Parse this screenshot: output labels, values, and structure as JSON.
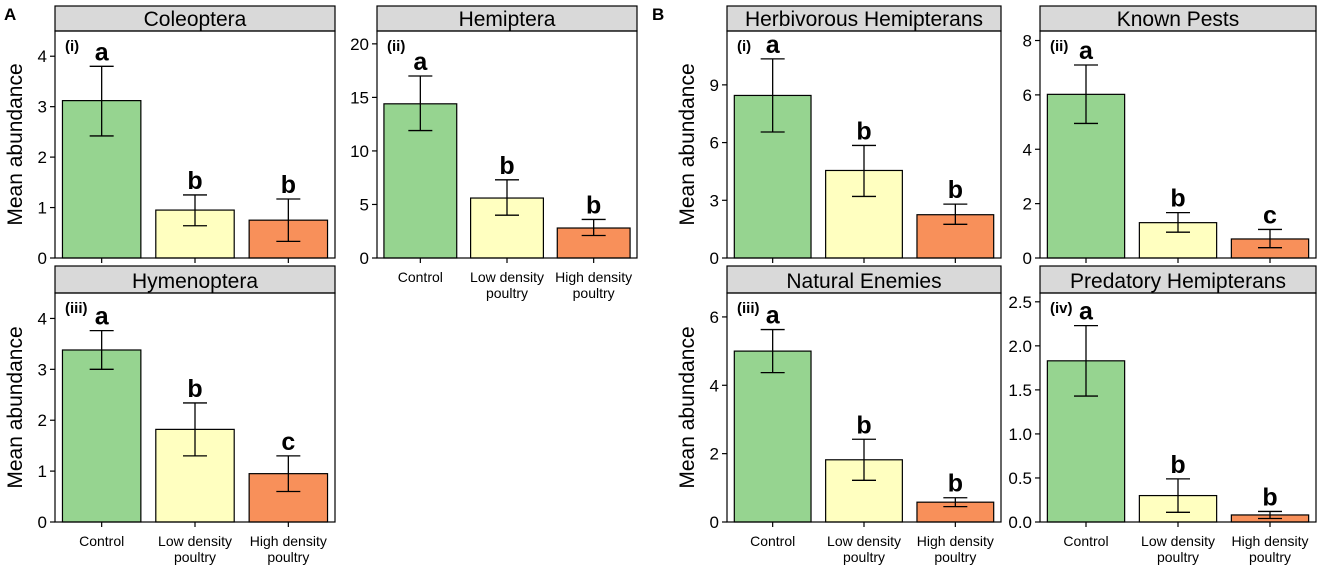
{
  "figure": {
    "panel_labels": [
      "A",
      "B"
    ]
  },
  "colors": {
    "categories": [
      "#96d490",
      "#ffffc0",
      "#f8905a"
    ],
    "strip_fill": "#d9d9d9",
    "border": "#000000"
  },
  "chart_data": [
    {
      "type": "bar",
      "group": "A",
      "tag": "(i)",
      "title": "Coleoptera",
      "categories": [
        "Control",
        "Low density poultry",
        "High density poultry"
      ],
      "values": [
        3.12,
        0.95,
        0.75
      ],
      "error_low": [
        2.42,
        0.64,
        0.33
      ],
      "error_high": [
        3.8,
        1.25,
        1.17
      ],
      "letters": [
        "a",
        "b",
        "b"
      ],
      "ylim": [
        0,
        4.5
      ],
      "yticks": [
        "0",
        "1",
        "2",
        "3",
        "4"
      ],
      "ylabel": "Mean abundance",
      "show_xticks": false
    },
    {
      "type": "bar",
      "group": "A",
      "tag": "(ii)",
      "title": "Hemiptera",
      "categories": [
        "Control",
        "Low density poultry",
        "High density poultry"
      ],
      "values": [
        14.4,
        5.6,
        2.8
      ],
      "error_low": [
        11.9,
        4.0,
        2.1
      ],
      "error_high": [
        17.0,
        7.3,
        3.6
      ],
      "letters": [
        "a",
        "b",
        "b"
      ],
      "ylim": [
        0,
        21.2
      ],
      "yticks": [
        "0",
        "5",
        "10",
        "15",
        "20"
      ],
      "ylabel": "",
      "show_xticks": true
    },
    {
      "type": "bar",
      "group": "A",
      "tag": "(iii)",
      "title": "Hymenoptera",
      "categories": [
        "Control",
        "Low density poultry",
        "High density poultry"
      ],
      "values": [
        3.38,
        1.82,
        0.95
      ],
      "error_low": [
        3.0,
        1.3,
        0.6
      ],
      "error_high": [
        3.76,
        2.34,
        1.3
      ],
      "letters": [
        "a",
        "b",
        "c"
      ],
      "ylim": [
        0,
        4.5
      ],
      "yticks": [
        "0",
        "1",
        "2",
        "3",
        "4"
      ],
      "ylabel": "Mean abundance",
      "show_xticks": true
    },
    {
      "type": "bar",
      "group": "B",
      "tag": "(i)",
      "title": "Herbivorous Hemipterans",
      "categories": [
        "Control",
        "Low density poultry",
        "High density poultry"
      ],
      "values": [
        8.45,
        4.55,
        2.25
      ],
      "error_low": [
        6.55,
        3.2,
        1.75
      ],
      "error_high": [
        10.35,
        5.85,
        2.8
      ],
      "letters": [
        "a",
        "b",
        "b"
      ],
      "ylim": [
        0,
        11.8
      ],
      "yticks": [
        "0",
        "3",
        "6",
        "9"
      ],
      "ylabel": "Mean abundance",
      "show_xticks": false
    },
    {
      "type": "bar",
      "group": "B",
      "tag": "(ii)",
      "title": "Known Pests",
      "categories": [
        "Control",
        "Low density poultry",
        "High density poultry"
      ],
      "values": [
        6.02,
        1.3,
        0.7
      ],
      "error_low": [
        4.95,
        0.95,
        0.38
      ],
      "error_high": [
        7.1,
        1.67,
        1.05
      ],
      "letters": [
        "a",
        "b",
        "c"
      ],
      "ylim": [
        0,
        8.35
      ],
      "yticks": [
        "0",
        "2",
        "4",
        "6",
        "8"
      ],
      "ylabel": "",
      "show_xticks": false
    },
    {
      "type": "bar",
      "group": "B",
      "tag": "(iii)",
      "title": "Natural Enemies",
      "categories": [
        "Control",
        "Low density poultry",
        "High density poultry"
      ],
      "values": [
        5.0,
        1.82,
        0.58
      ],
      "error_low": [
        4.37,
        1.22,
        0.45
      ],
      "error_high": [
        5.63,
        2.42,
        0.71
      ],
      "letters": [
        "a",
        "b",
        "b"
      ],
      "ylim": [
        0,
        6.7
      ],
      "yticks": [
        "0",
        "2",
        "4",
        "6"
      ],
      "ylabel": "Mean abundance",
      "show_xticks": true
    },
    {
      "type": "bar",
      "group": "B",
      "tag": "(iv)",
      "title": "Predatory Hemipterans",
      "categories": [
        "Control",
        "Low density poultry",
        "High density poultry"
      ],
      "values": [
        1.83,
        0.3,
        0.08
      ],
      "error_low": [
        1.43,
        0.11,
        0.04
      ],
      "error_high": [
        2.23,
        0.49,
        0.12
      ],
      "letters": [
        "a",
        "b",
        "b"
      ],
      "ylim": [
        0,
        2.6
      ],
      "yticks": [
        "0.0",
        "0.5",
        "1.0",
        "1.5",
        "2.0",
        "2.5"
      ],
      "ylabel": "",
      "show_xticks": true
    }
  ]
}
